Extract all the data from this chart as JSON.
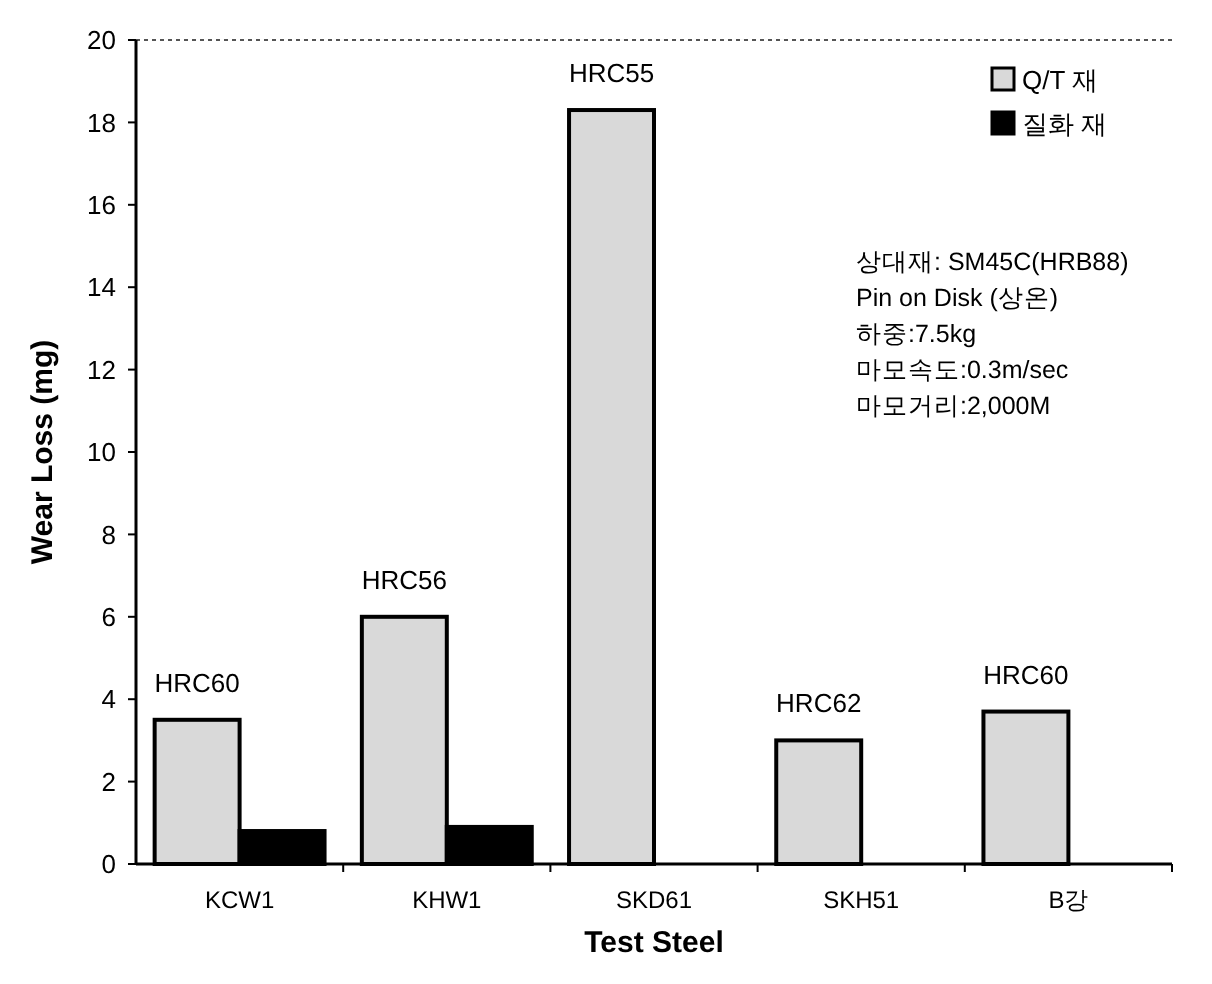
{
  "chart_data": {
    "type": "bar",
    "xlabel": "Test   Steel",
    "ylabel": "Wear Loss (mg)",
    "categories": [
      "KCW1",
      "KHW1",
      "SKD61",
      "SKH51",
      "B강"
    ],
    "series": [
      {
        "name": "Q/T 재",
        "color": "#d9d9d9",
        "values": [
          3.5,
          6.0,
          18.3,
          3.0,
          3.7
        ]
      },
      {
        "name": "질화 재",
        "color": "#000000",
        "values": [
          0.8,
          0.9,
          null,
          null,
          null
        ]
      }
    ],
    "ylim": [
      0,
      20
    ],
    "yticks": [
      0,
      2,
      4,
      6,
      8,
      10,
      12,
      14,
      16,
      18,
      20
    ],
    "legend": "top right",
    "grid": false,
    "annotations": [
      {
        "text": "HRC60",
        "x": "KCW1",
        "y": 3.5
      },
      {
        "text": "HRC56",
        "x": "KHW1",
        "y": 6.0
      },
      {
        "text": "HRC55",
        "x": "SKD61",
        "y": 18.3
      },
      {
        "text": "HRC62",
        "x": "SKH51",
        "y": 3.0
      },
      {
        "text": "HRC60",
        "x": "B강",
        "y": 3.7
      },
      "상대재: SM45C(HRB88)",
      "Pin on Disk (상온)",
      "하중:7.5kg",
      "마모속도:0.3m/sec",
      "마모거리:2,000M"
    ]
  }
}
